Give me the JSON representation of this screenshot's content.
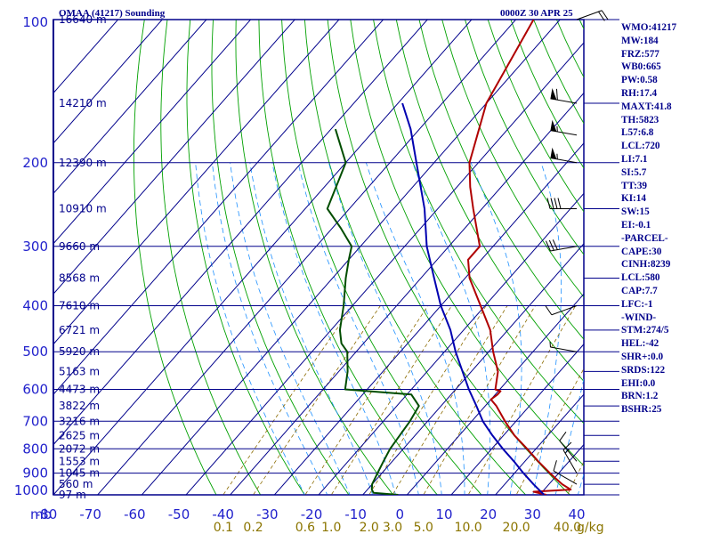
{
  "header": {
    "station": "OMAA (41217) Sounding",
    "time": "0000Z 30 APR 25"
  },
  "indices": [
    "WMO:41217",
    "MW:184",
    "FRZ:577",
    "WB0:665",
    "PW:0.58",
    "RH:17.4",
    "MAXT:41.8",
    "TH:5823",
    "L57:6.8",
    "LCL:720",
    "LI:7.1",
    "SI:5.7",
    "TT:39",
    "KI:14",
    "SW:15",
    "EI:-0.1",
    "-PARCEL-",
    "CAPE:30",
    "CINH:8239",
    "LCL:580",
    "CAP:7.7",
    "LFC:-1",
    "-WIND-",
    "STM:274/5",
    "HEL:-42",
    "SHR+:0.0",
    "SRDS:122",
    "EHI:0.0",
    "BRN:1.2",
    "BSHR:25"
  ],
  "colors": {
    "background": "#ffffff",
    "isobar": "#00008b",
    "isotherm": "#00008b",
    "dry_adiabat": "#00a000",
    "moist_adiabat": "#1e90ff",
    "mixing_ratio": "#8b6b00",
    "temperature": "#b00000",
    "dewpoint": "#004d00",
    "parcel": "#0000b0",
    "label": "#2222cc"
  },
  "chart_data": {
    "type": "line",
    "title": "",
    "xlabel": "",
    "ylabel": "mb",
    "diagram": "skew-T log-P",
    "x_unit_label": "mb",
    "xlim": [
      -80,
      40
    ],
    "ylim": [
      1000,
      100
    ],
    "y_scale": "log",
    "pressure_ticks": [
      100,
      200,
      300,
      400,
      500,
      600,
      700,
      800,
      900,
      1000
    ],
    "temperature_ticks": [
      -80,
      -70,
      -60,
      -50,
      -40,
      -30,
      -20,
      -10,
      0,
      10,
      20,
      30,
      40
    ],
    "mixing_ratio_unit": "g/kg",
    "mixing_ratio_ticks": [
      {
        "value": 0.1,
        "label": "0.1"
      },
      {
        "value": 0.2,
        "label": "0.2"
      },
      {
        "value": 0.6,
        "label": "0.6"
      },
      {
        "value": 1.0,
        "label": "1.0"
      },
      {
        "value": 2.0,
        "label": "2.0"
      },
      {
        "value": 3.0,
        "label": "3.0"
      },
      {
        "value": 5.0,
        "label": "5.0"
      },
      {
        "value": 10.0,
        "label": "10.0"
      },
      {
        "value": 20.0,
        "label": "20.0"
      },
      {
        "value": 40.0,
        "label": "40.0"
      }
    ],
    "height_labels": [
      {
        "p": 1000,
        "label": "97 m"
      },
      {
        "p": 950,
        "label": "560 m"
      },
      {
        "p": 900,
        "label": "1045 m"
      },
      {
        "p": 850,
        "label": "1553 m"
      },
      {
        "p": 800,
        "label": "2072 m"
      },
      {
        "p": 750,
        "label": "2625 m"
      },
      {
        "p": 700,
        "label": "3216 m"
      },
      {
        "p": 650,
        "label": "3822 m"
      },
      {
        "p": 600,
        "label": "4473 m"
      },
      {
        "p": 550,
        "label": "5163 m"
      },
      {
        "p": 500,
        "label": "5920 m"
      },
      {
        "p": 450,
        "label": "6721 m"
      },
      {
        "p": 400,
        "label": "7610 m"
      },
      {
        "p": 350,
        "label": "8568 m"
      },
      {
        "p": 300,
        "label": "9660 m"
      },
      {
        "p": 250,
        "label": "10910 m"
      },
      {
        "p": 200,
        "label": "12390 m"
      },
      {
        "p": 150,
        "label": "14210 m"
      },
      {
        "p": 100,
        "label": "16640 m"
      }
    ],
    "series": [
      {
        "key": "temperature",
        "points": [
          [
            1000,
            31.5
          ],
          [
            985,
            28
          ],
          [
            975,
            36
          ],
          [
            950,
            33
          ],
          [
            925,
            30.5
          ],
          [
            900,
            28
          ],
          [
            850,
            23
          ],
          [
            800,
            18
          ],
          [
            750,
            12.5
          ],
          [
            700,
            7.5
          ],
          [
            650,
            2.5
          ],
          [
            630,
            0
          ],
          [
            615,
            0.5
          ],
          [
            605,
            0.5
          ],
          [
            600,
            -1
          ],
          [
            550,
            -4
          ],
          [
            500,
            -9
          ],
          [
            450,
            -14
          ],
          [
            400,
            -21
          ],
          [
            350,
            -29
          ],
          [
            320,
            -33
          ],
          [
            300,
            -33
          ],
          [
            250,
            -42
          ],
          [
            225,
            -47
          ],
          [
            200,
            -52
          ],
          [
            150,
            -60
          ],
          [
            100,
            -66
          ]
        ]
      },
      {
        "key": "dewpoint",
        "points": [
          [
            1000,
            -2
          ],
          [
            990,
            -8
          ],
          [
            975,
            -9
          ],
          [
            950,
            -10
          ],
          [
            900,
            -11
          ],
          [
            850,
            -12
          ],
          [
            800,
            -13
          ],
          [
            700,
            -14
          ],
          [
            650,
            -15
          ],
          [
            615,
            -19
          ],
          [
            600,
            -35
          ],
          [
            550,
            -38
          ],
          [
            500,
            -42
          ],
          [
            480,
            -45
          ],
          [
            450,
            -48
          ],
          [
            400,
            -52
          ],
          [
            350,
            -57
          ],
          [
            320,
            -60
          ],
          [
            300,
            -62
          ],
          [
            275,
            -68
          ],
          [
            250,
            -75
          ],
          [
            200,
            -80
          ],
          [
            170,
            -89
          ]
        ]
      },
      {
        "key": "parcel",
        "points": [
          [
            1000,
            31
          ],
          [
            950,
            26.5
          ],
          [
            900,
            22
          ],
          [
            850,
            17.5
          ],
          [
            800,
            12.5
          ],
          [
            750,
            7.5
          ],
          [
            700,
            2.5
          ],
          [
            650,
            -2
          ],
          [
            600,
            -7
          ],
          [
            550,
            -12
          ],
          [
            500,
            -17.5
          ],
          [
            450,
            -23
          ],
          [
            400,
            -30
          ],
          [
            350,
            -37
          ],
          [
            300,
            -45
          ],
          [
            250,
            -53
          ],
          [
            200,
            -64
          ],
          [
            170,
            -72
          ],
          [
            150,
            -79
          ]
        ]
      }
    ],
    "wind_barbs": [
      {
        "p": 100,
        "dir": 70,
        "kt": 20
      },
      {
        "p": 150,
        "dir": 280,
        "kt": 60
      },
      {
        "p": 175,
        "dir": 280,
        "kt": 55
      },
      {
        "p": 200,
        "dir": 280,
        "kt": 55
      },
      {
        "p": 250,
        "dir": 270,
        "kt": 40
      },
      {
        "p": 300,
        "dir": 260,
        "kt": 30
      },
      {
        "p": 400,
        "dir": 250,
        "kt": 10
      },
      {
        "p": 500,
        "dir": 280,
        "kt": 5
      },
      {
        "p": 850,
        "dir": 320,
        "kt": 10
      },
      {
        "p": 900,
        "dir": 330,
        "kt": 15
      },
      {
        "p": 950,
        "dir": 300,
        "kt": 10
      }
    ]
  }
}
